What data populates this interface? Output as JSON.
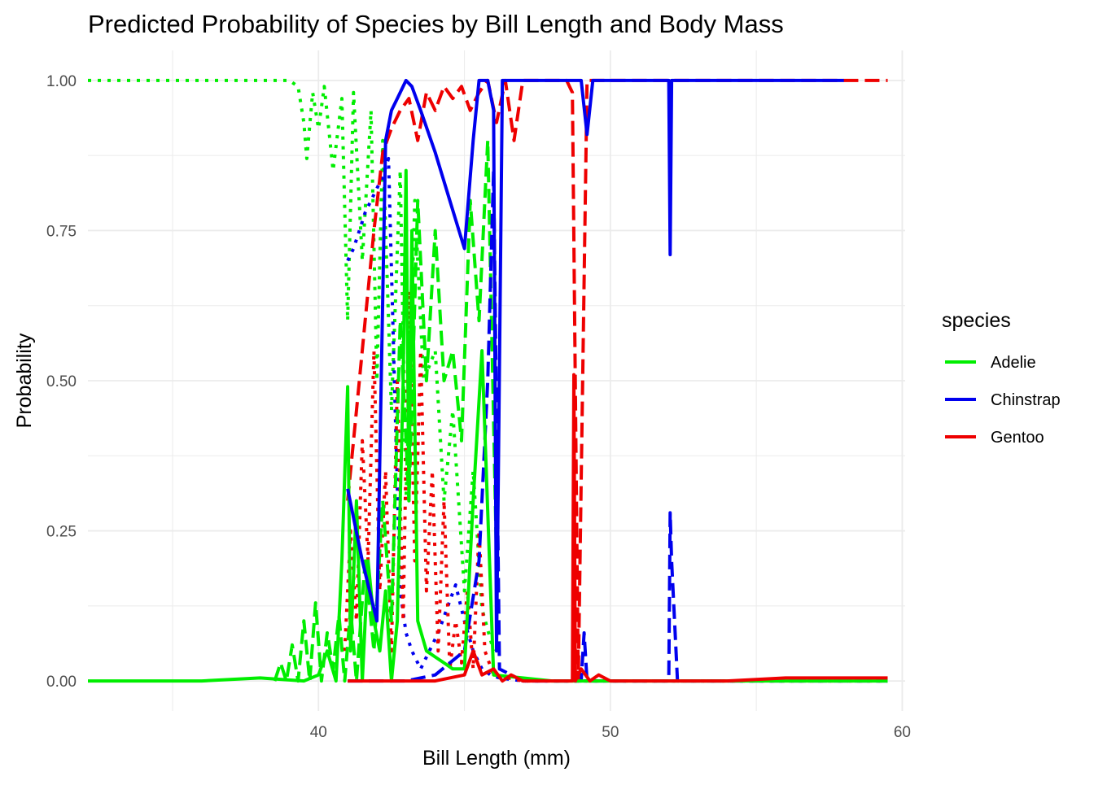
{
  "chart_data": {
    "type": "line",
    "title": "Predicted Probability of Species by Bill Length and Body Mass",
    "xlabel": "Bill Length (mm)",
    "ylabel": "Probability",
    "xlim": [
      32.1,
      60.1
    ],
    "ylim": [
      -0.05,
      1.05
    ],
    "x_ticks": [
      40,
      50,
      60
    ],
    "y_ticks": [
      0,
      0.25,
      0.5,
      0.75,
      1
    ],
    "y_tick_labels": [
      "0.00",
      "0.25",
      "0.50",
      "0.75",
      "1.00"
    ],
    "grid": true,
    "legend": {
      "title": "species",
      "position": "right",
      "entries": [
        "Adelie",
        "Chinstrap",
        "Gentoo"
      ]
    },
    "colors": {
      "Adelie": "#00ee00",
      "Chinstrap": "#0000ee",
      "Gentoo": "#ee0000"
    },
    "series": [
      {
        "name": "Adelie",
        "style": "dotted",
        "x": [
          32.1,
          34,
          36,
          38,
          39,
          39.3,
          39.5,
          39.6,
          39.8,
          40.0,
          40.2,
          40.5,
          40.8,
          41.0,
          41.2,
          41.5,
          41.8,
          42.0,
          42.2,
          42.5,
          42.8,
          43.0,
          43.3,
          43.6,
          44.0,
          44.3,
          44.6,
          45.0,
          45.3,
          45.6,
          46.0
        ],
        "y": [
          1,
          1,
          1,
          1,
          1,
          0.99,
          0.93,
          0.87,
          0.98,
          0.92,
          0.99,
          0.85,
          0.97,
          0.6,
          0.98,
          0.7,
          0.95,
          0.5,
          0.9,
          0.45,
          0.85,
          0.3,
          0.8,
          0.5,
          0.55,
          0.3,
          0.45,
          0.15,
          0.35,
          0.12,
          0.05
        ]
      },
      {
        "name": "Adelie",
        "style": "dashed",
        "x": [
          38.5,
          38.7,
          38.9,
          39.1,
          39.3,
          39.5,
          39.7,
          39.9,
          40.1,
          40.3,
          40.5,
          40.7,
          40.9,
          41.1,
          41.3,
          41.6,
          41.9,
          42.2,
          42.5,
          42.8,
          43.1,
          43.4,
          43.7,
          44.0,
          44.3,
          44.6,
          44.9,
          45.2,
          45.5,
          45.8,
          46.1
        ],
        "y": [
          0,
          0.03,
          0,
          0.06,
          0,
          0.1,
          0,
          0.13,
          0,
          0.08,
          0.02,
          0.11,
          0,
          0.12,
          0,
          0.2,
          0.05,
          0.3,
          0.1,
          0.6,
          0.3,
          0.8,
          0.5,
          0.75,
          0.5,
          0.55,
          0.4,
          0.8,
          0.6,
          0.9,
          0.2
        ]
      },
      {
        "name": "Adelie",
        "style": "solid",
        "x": [
          32.1,
          36,
          38,
          39.5,
          40.0,
          40.3,
          40.6,
          40.8,
          41.0,
          41.1,
          41.3,
          41.5,
          41.7,
          41.9,
          42.1,
          42.3,
          42.5,
          42.7,
          42.9,
          43.0,
          43.1,
          43.2,
          43.4,
          43.7,
          44.0,
          44.3,
          44.6,
          45.0,
          45.3,
          45.6,
          46.0,
          48,
          52,
          56,
          59.5
        ],
        "y": [
          0,
          0,
          0.005,
          0,
          0.01,
          0.05,
          0,
          0.2,
          0.49,
          0.05,
          0.3,
          0,
          0.2,
          0.1,
          0.05,
          0.15,
          0,
          0.1,
          0.5,
          0.85,
          0.3,
          0.75,
          0.1,
          0.05,
          0.04,
          0.03,
          0.02,
          0.02,
          0.3,
          0.55,
          0.01,
          0,
          0,
          0,
          0
        ]
      },
      {
        "name": "Chinstrap",
        "style": "dotted",
        "x": [
          41.0,
          41.2,
          41.4,
          41.6,
          41.8,
          42.0,
          42.2,
          42.4,
          42.6,
          42.8,
          43.0,
          43.2,
          43.5,
          43.8,
          44.1,
          44.4,
          44.7,
          45.0,
          45.3,
          45.6,
          45.9,
          46.2,
          47,
          50,
          54,
          58,
          59.5
        ],
        "y": [
          0.7,
          0.72,
          0.75,
          0.78,
          0.8,
          0.82,
          0.84,
          0.87,
          0.5,
          0.15,
          0.08,
          0.05,
          0.02,
          0.05,
          0.08,
          0.12,
          0.16,
          0.1,
          0.05,
          0.02,
          0.01,
          0.005,
          0,
          0,
          0,
          0,
          0
        ]
      },
      {
        "name": "Chinstrap",
        "style": "dashed",
        "x": [
          41.0,
          42.0,
          43.0,
          44.0,
          45.0,
          45.5,
          45.8,
          46.0,
          46.2,
          47,
          48,
          49.0,
          49.1,
          49.2,
          50,
          51,
          52.0,
          52.05,
          52.1,
          52.3,
          53,
          55,
          57,
          59.5
        ],
        "y": [
          0,
          0,
          0,
          0.01,
          0.05,
          0.2,
          0.5,
          0.85,
          0.02,
          0,
          0,
          0,
          0.08,
          0,
          0,
          0,
          0,
          0.28,
          0.2,
          0,
          0,
          0,
          0,
          0
        ]
      },
      {
        "name": "Chinstrap",
        "style": "solid",
        "x": [
          41.0,
          41.5,
          42.0,
          42.3,
          42.5,
          42.7,
          43.0,
          43.2,
          43.5,
          44.0,
          44.5,
          45.0,
          45.3,
          45.5,
          45.8,
          46.0,
          46.1,
          46.3,
          47,
          48,
          49.0,
          49.2,
          49.4,
          50,
          51,
          52.0,
          52.05,
          52.1,
          53,
          55,
          58
        ],
        "y": [
          0.32,
          0.2,
          0.1,
          0.9,
          0.95,
          0.97,
          1.0,
          0.99,
          0.95,
          0.88,
          0.8,
          0.72,
          0.9,
          1.0,
          1.0,
          0.95,
          0.05,
          1.0,
          1.0,
          1.0,
          1.0,
          0.91,
          1.0,
          1.0,
          1.0,
          1.0,
          0.71,
          1.0,
          1.0,
          1.0,
          1.0
        ]
      },
      {
        "name": "Gentoo",
        "style": "dotted",
        "x": [
          40.9,
          41.1,
          41.3,
          41.5,
          41.7,
          41.9,
          42.1,
          42.3,
          42.5,
          42.7,
          42.9,
          43.1,
          43.3,
          43.5,
          43.7,
          43.9,
          44.1,
          44.3,
          44.5,
          44.7,
          44.9,
          45.1,
          45.3,
          45.5,
          45.7,
          46.0,
          47,
          50,
          54,
          58,
          59.5
        ],
        "y": [
          0.05,
          0.25,
          0.1,
          0.4,
          0.2,
          0.55,
          0.15,
          0.35,
          0.05,
          0.5,
          0.1,
          0.65,
          0.2,
          0.55,
          0.15,
          0.35,
          0.05,
          0.3,
          0.02,
          0.1,
          0.03,
          0.15,
          0.02,
          0.25,
          0.05,
          0.01,
          0,
          0,
          0,
          0,
          0
        ]
      },
      {
        "name": "Gentoo",
        "style": "dashed",
        "x": [
          41.0,
          41.3,
          41.6,
          41.9,
          42.2,
          42.5,
          42.8,
          43.1,
          43.4,
          43.7,
          44.0,
          44.3,
          44.6,
          44.9,
          45.2,
          45.5,
          45.8,
          46.1,
          46.4,
          46.7,
          47,
          48,
          48.5,
          48.7,
          48.9,
          49.2,
          50,
          52,
          54,
          56,
          58,
          59.5
        ],
        "y": [
          0.3,
          0.45,
          0.6,
          0.75,
          0.88,
          0.92,
          0.95,
          0.97,
          0.9,
          0.98,
          0.95,
          0.99,
          0.97,
          0.99,
          0.95,
          0.98,
          1.0,
          0.93,
          1.0,
          0.9,
          1.0,
          1.0,
          1.0,
          0.98,
          0.0,
          1.0,
          1.0,
          1.0,
          1.0,
          1.0,
          1.0,
          1.0
        ]
      },
      {
        "name": "Gentoo",
        "style": "solid",
        "x": [
          41.0,
          42.0,
          43.0,
          44.0,
          45.0,
          45.3,
          45.6,
          46.0,
          46.3,
          46.6,
          47,
          48,
          48.7,
          48.75,
          48.8,
          49.0,
          49.3,
          49.6,
          50,
          52,
          54,
          56,
          58,
          59.5
        ],
        "y": [
          0,
          0,
          0,
          0,
          0.01,
          0.05,
          0.01,
          0.02,
          0,
          0.01,
          0,
          0,
          0,
          0.51,
          0,
          0.02,
          0,
          0.01,
          0,
          0,
          0,
          0.005,
          0.005,
          0.005
        ]
      }
    ]
  }
}
